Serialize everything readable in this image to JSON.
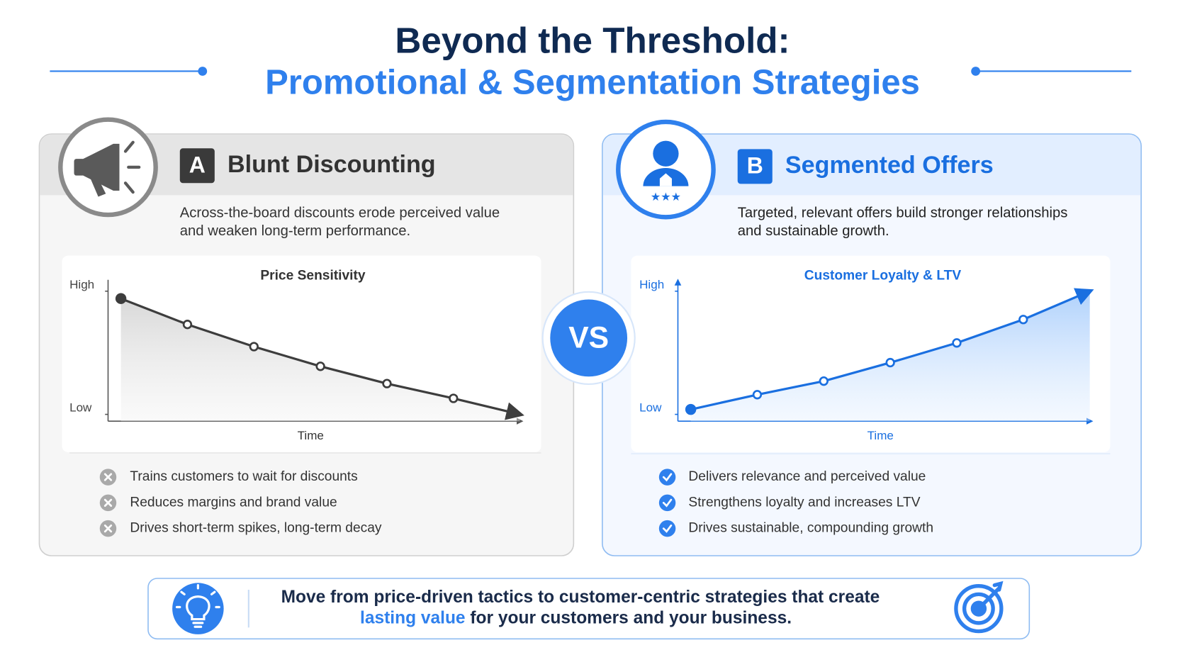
{
  "header": {
    "title": "Beyond the Threshold:",
    "subtitle": "Promotional & Segmentation Strategies"
  },
  "panels": [
    {
      "letter": "A",
      "title": "Blunt Discounting",
      "description": [
        "Across-the-board discounts erode perceived value",
        "and weaken long-term performance."
      ],
      "bullets": [
        "Trains customers to wait for discounts",
        "Reduces margins and brand value",
        "Drives short-term spikes, long-term decay"
      ]
    },
    {
      "letter": "B",
      "title": "Segmented Offers",
      "description": [
        "Targeted, relevant offers build stronger relationships",
        "and sustainable growth."
      ],
      "bullets": [
        "Delivers relevance and perceived value",
        "Strengthens loyalty and increases LTV",
        "Drives sustainable, compounding growth"
      ]
    }
  ],
  "chart_data": [
    {
      "type": "line",
      "title": "Price Sensitivity",
      "xlabel": "Time",
      "values": [
        94,
        73,
        55,
        39,
        25,
        13,
        0
      ],
      "color": "#3d3d3d",
      "ylim": [
        0,
        100
      ],
      "yticks": [
        {
          "value": 100,
          "label": "High"
        },
        {
          "value": 0,
          "label": "Low"
        }
      ]
    },
    {
      "type": "line",
      "title": "Customer Loyalty & LTV",
      "xlabel": "Time",
      "values": [
        4,
        16,
        27,
        42,
        58,
        77,
        100
      ],
      "color": "#1a6fe0",
      "ylim": [
        0,
        100
      ],
      "yticks": [
        {
          "value": 100,
          "label": "High"
        },
        {
          "value": 0,
          "label": "Low"
        }
      ]
    }
  ],
  "vs": "VS",
  "footer": {
    "line1": "Move from price-driven tactics to customer-centric strategies that create",
    "highlight": "lasting value",
    "rest": " for your customers and your business."
  }
}
